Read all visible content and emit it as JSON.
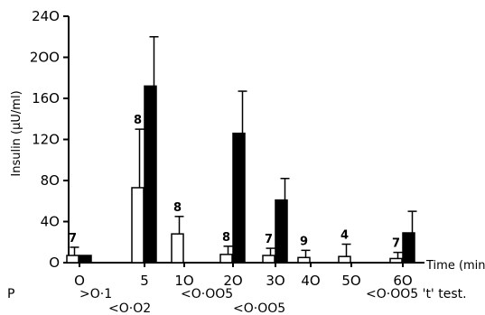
{
  "chart_data": {
    "type": "bar",
    "ylabel": "Insulin (μU/ml)",
    "xlabel": "Time (min)",
    "ylim": [
      0,
      240
    ],
    "yticks": [
      "0",
      "40",
      "80",
      "120",
      "160",
      "200",
      "240"
    ],
    "yticks_display": [
      "O",
      "4O",
      "8O",
      "12O",
      "16O",
      "2OO",
      "24O"
    ],
    "categories": [
      "O",
      "5",
      "1O",
      "2O",
      "3O",
      "4O",
      "5O",
      "6O"
    ],
    "series": [
      {
        "fill": "white",
        "values": [
          7,
          73,
          28,
          8,
          7,
          5,
          6,
          4
        ],
        "errors": [
          8,
          57,
          17,
          8,
          7,
          7,
          12,
          6
        ]
      },
      {
        "fill": "black",
        "values": [
          7,
          172,
          null,
          126,
          61,
          null,
          null,
          29
        ],
        "errors": [
          null,
          48,
          null,
          41,
          21,
          null,
          null,
          21
        ]
      }
    ],
    "n_labels": [
      "7",
      "8",
      "8",
      "8",
      "7",
      "9",
      "4",
      "7"
    ],
    "p_label": "P",
    "p_values": [
      ">O·1",
      "<O·O2",
      "<O·OO5",
      "<O·OO5",
      "<O·OO5 't' test."
    ]
  }
}
